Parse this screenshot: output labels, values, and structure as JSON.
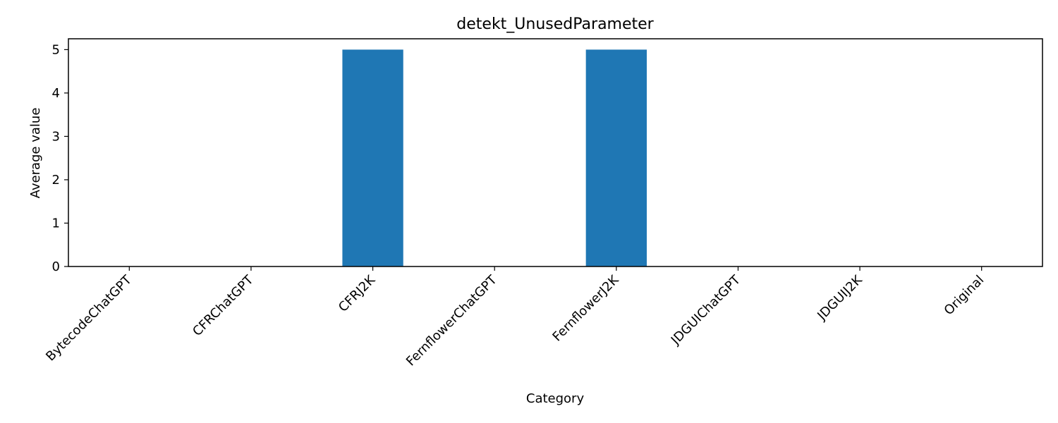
{
  "chart_data": {
    "type": "bar",
    "title": "detekt_UnusedParameter",
    "xlabel": "Category",
    "ylabel": "Average value",
    "categories": [
      "BytecodeChatGPT",
      "CFRChatGPT",
      "CFRJ2K",
      "FernflowerChatGPT",
      "FernflowerJ2K",
      "JDGUIChatGPT",
      "JDGUIJ2K",
      "Original"
    ],
    "values": [
      0,
      0,
      5,
      0,
      5,
      0,
      0,
      0
    ],
    "yticks": [
      0,
      1,
      2,
      3,
      4,
      5
    ],
    "ylim": [
      0,
      5.25
    ],
    "grid": false,
    "bar_color": "#1f77b4"
  }
}
